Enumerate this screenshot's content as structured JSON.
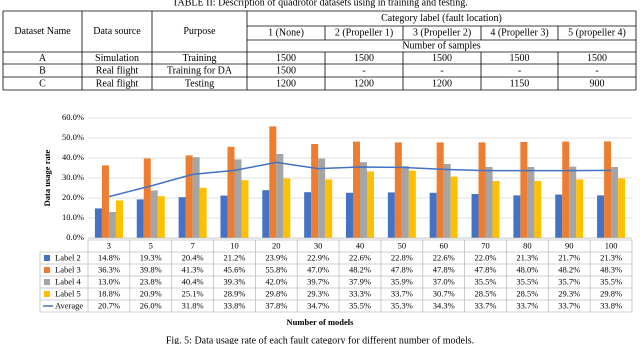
{
  "table_caption": "TABLE II: Description of quadrotor datasets using in training and testing.",
  "table": {
    "headers": {
      "dataset_name": "Dataset Name",
      "data_source": "Data source",
      "purpose": "Purpose",
      "category_label": "Category label (fault location)",
      "categories": [
        "1 (None)",
        "2 (Propeller 1)",
        "3 (Propeller 2)",
        "4 (Propeller 3)",
        "5 (propeller 4)"
      ],
      "number_of_samples": "Number of samples"
    },
    "rows": [
      [
        "A",
        "Simulation",
        "Training",
        1500,
        1500,
        1500,
        1500,
        1500
      ],
      [
        "B",
        "Real flight",
        "Training for DA",
        1500,
        "-",
        "-",
        "-",
        "-"
      ],
      [
        "C",
        "Real flight",
        "Testing",
        1200,
        1200,
        1200,
        1150,
        900
      ]
    ]
  },
  "chart_data": {
    "type": "bar",
    "x_axis_label": "Number of models",
    "y_axis_label": "Data usage rate",
    "categories": [
      "3",
      "5",
      "7",
      "10",
      "20",
      "30",
      "40",
      "50",
      "60",
      "70",
      "80",
      "90",
      "100"
    ],
    "ylim": [
      0,
      60
    ],
    "yticks": [
      {
        "value": 0,
        "label": "0.0%"
      },
      {
        "value": 10,
        "label": "10.0%"
      },
      {
        "value": 20,
        "label": "20.0%"
      },
      {
        "value": 30,
        "label": "30.0%"
      },
      {
        "value": 40,
        "label": "40.0%"
      },
      {
        "value": 50,
        "label": "50.0%"
      },
      {
        "value": 60,
        "label": "60.0%"
      }
    ],
    "grid": true,
    "series": [
      {
        "name": "Label 2",
        "color": "#4472c4",
        "values": [
          14.8,
          19.3,
          20.4,
          21.2,
          23.9,
          22.9,
          22.6,
          22.8,
          22.6,
          22.0,
          21.3,
          21.7,
          21.3
        ],
        "value_labels": [
          "14.8%",
          "19.3%",
          "20.4%",
          "21.2%",
          "23.9%",
          "22.9%",
          "22.6%",
          "22.8%",
          "22.6%",
          "22.0%",
          "21.3%",
          "21.7%",
          "21.3%"
        ]
      },
      {
        "name": "Label 3",
        "color": "#ed7d31",
        "values": [
          36.3,
          39.8,
          41.3,
          45.6,
          55.8,
          47.0,
          48.2,
          47.8,
          47.8,
          47.8,
          48.0,
          48.2,
          48.3
        ],
        "value_labels": [
          "36.3%",
          "39.8%",
          "41.3%",
          "45.6%",
          "55.8%",
          "47.0%",
          "48.2%",
          "47.8%",
          "47.8%",
          "47.8%",
          "48.0%",
          "48.2%",
          "48.3%"
        ]
      },
      {
        "name": "Label 4",
        "color": "#a5a5a5",
        "values": [
          13.0,
          23.8,
          40.4,
          39.3,
          42.0,
          39.7,
          37.9,
          35.9,
          37.0,
          35.5,
          35.5,
          35.7,
          35.5
        ],
        "value_labels": [
          "13.0%",
          "23.8%",
          "40.4%",
          "39.3%",
          "42.0%",
          "39.7%",
          "37.9%",
          "35.9%",
          "37.0%",
          "35.5%",
          "35.5%",
          "35.7%",
          "35.5%"
        ]
      },
      {
        "name": "Label 5",
        "color": "#ffc000",
        "values": [
          18.8,
          20.9,
          25.1,
          28.9,
          29.8,
          29.3,
          33.3,
          33.7,
          30.7,
          28.5,
          28.5,
          29.3,
          29.8
        ],
        "value_labels": [
          "18.8%",
          "20.9%",
          "25.1%",
          "28.9%",
          "29.8%",
          "29.3%",
          "33.3%",
          "33.7%",
          "30.7%",
          "28.5%",
          "28.5%",
          "29.3%",
          "29.8%"
        ]
      },
      {
        "name": "Average",
        "color": "#4472c4",
        "type": "line",
        "values": [
          20.7,
          26.0,
          31.8,
          33.8,
          37.8,
          34.7,
          35.5,
          35.3,
          34.3,
          33.7,
          33.7,
          33.7,
          33.8
        ],
        "value_labels": [
          "20.7%",
          "26.0%",
          "31.8%",
          "33.8%",
          "37.8%",
          "34.7%",
          "35.5%",
          "35.3%",
          "34.3%",
          "33.7%",
          "33.7%",
          "33.7%",
          "33.8%"
        ]
      }
    ]
  },
  "figure_caption": "Fig. 5: Data usage rate of each fault category for different number of models."
}
